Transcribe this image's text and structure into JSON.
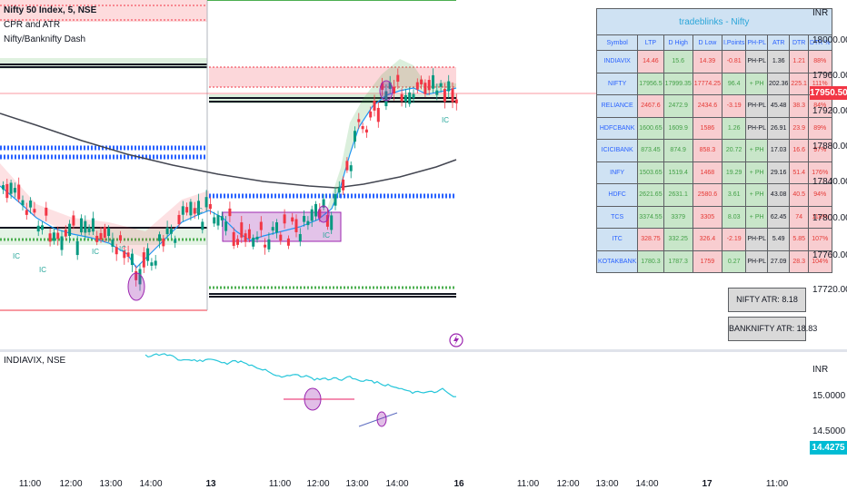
{
  "legend": {
    "symbol": "Nifty 50 Index, 5, NSE",
    "indicator1": "CPR and ATR",
    "indicator2": "Nifty/Banknifty Dash"
  },
  "vix_legend": "INDIAVIX, NSE",
  "price_scale": {
    "currency": "INR",
    "labels": [
      "18000.00",
      "17960.00",
      "17920.00",
      "17880.00",
      "17840.00",
      "17800.00",
      "17760.00",
      "17720.00"
    ],
    "last_price": "17950.50",
    "last_price_color": "#f23645"
  },
  "vix_scale": {
    "currency": "INR",
    "labels": [
      "15.0000",
      "14.5000"
    ],
    "last_value": "14.4275",
    "last_value_color": "#00bcd4"
  },
  "time_axis": {
    "labels": [
      "11:00",
      "12:00",
      "13:00",
      "14:00",
      "13",
      "11:00",
      "12:00",
      "13:00",
      "14:00",
      "16",
      "11:00",
      "12:00",
      "13:00",
      "14:00",
      "17",
      "11:00"
    ]
  },
  "dashboard": {
    "title": "tradeblinks - Nifty",
    "headers": [
      "Symbol",
      "LTP",
      "D High",
      "D Low",
      "I.Points",
      "PH-PL",
      "ATR",
      "DTR",
      "DTR %"
    ],
    "rows": [
      {
        "cells": [
          "INDIAVIX",
          "14.46",
          "15.6",
          "14.39",
          "-0.81",
          "PH-PL",
          "1.36",
          "1.21",
          "88%"
        ],
        "styles": [
          "sym",
          "r",
          "g",
          "r",
          "r",
          "gray",
          "gray",
          "r",
          "r"
        ]
      },
      {
        "cells": [
          "NIFTY",
          "17956.5",
          "17999.35",
          "17774.25",
          "96.4",
          "+ PH",
          "202.36",
          "225.1",
          "111%"
        ],
        "styles": [
          "sym",
          "g",
          "g",
          "r",
          "g",
          "g",
          "gray",
          "r",
          "r"
        ]
      },
      {
        "cells": [
          "RELIANCE",
          "2467.6",
          "2472.9",
          "2434.6",
          "-3.19",
          "PH-PL",
          "45.48",
          "38.3",
          "84%"
        ],
        "styles": [
          "sym",
          "r",
          "g",
          "r",
          "r",
          "gray",
          "gray",
          "r",
          "r"
        ]
      },
      {
        "cells": [
          "HDFCBANK",
          "1600.65",
          "1609.9",
          "1586",
          "1.26",
          "PH-PL",
          "26.91",
          "23.9",
          "89%"
        ],
        "styles": [
          "sym",
          "g",
          "g",
          "r",
          "g",
          "gray",
          "gray",
          "r",
          "r"
        ]
      },
      {
        "cells": [
          "ICICIBANK",
          "873.45",
          "874.9",
          "858.3",
          "20.72",
          "+ PH",
          "17.03",
          "16.6",
          "97%"
        ],
        "styles": [
          "sym",
          "g",
          "g",
          "r",
          "g",
          "g",
          "gray",
          "r",
          "r"
        ]
      },
      {
        "cells": [
          "INFY",
          "1503.65",
          "1519.4",
          "1468",
          "19.29",
          "+ PH",
          "29.16",
          "51.4",
          "176%"
        ],
        "styles": [
          "sym",
          "g",
          "g",
          "r",
          "g",
          "g",
          "gray",
          "r",
          "r"
        ]
      },
      {
        "cells": [
          "HDFC",
          "2621.65",
          "2631.1",
          "2580.6",
          "3.61",
          "+ PH",
          "43.08",
          "40.5",
          "94%"
        ],
        "styles": [
          "sym",
          "g",
          "g",
          "r",
          "g",
          "g",
          "gray",
          "r",
          "r"
        ]
      },
      {
        "cells": [
          "TCS",
          "3374.55",
          "3379",
          "3305",
          "8.03",
          "+ PH",
          "62.45",
          "74",
          "118%"
        ],
        "styles": [
          "sym",
          "g",
          "g",
          "r",
          "g",
          "g",
          "gray",
          "r",
          "r"
        ]
      },
      {
        "cells": [
          "ITC",
          "328.75",
          "332.25",
          "326.4",
          "-2.19",
          "PH-PL",
          "5.49",
          "5.85",
          "107%"
        ],
        "styles": [
          "sym",
          "r",
          "g",
          "r",
          "r",
          "gray",
          "gray",
          "r",
          "r"
        ]
      },
      {
        "cells": [
          "KOTAKBANK",
          "1780.3",
          "1787.3",
          "1759",
          "0.27",
          "PH-PL",
          "27.09",
          "28.3",
          "104%"
        ],
        "styles": [
          "sym",
          "g",
          "g",
          "r",
          "g",
          "gray",
          "gray",
          "r",
          "r"
        ]
      }
    ]
  },
  "atr_boxes": {
    "nifty": "NIFTY ATR: 8.18",
    "banknifty": "BANKNIFTY ATR: 18.83"
  },
  "chart_labels": {
    "ic": "IC"
  },
  "colors": {
    "bull": "#089981",
    "bear": "#f23645",
    "ema": "#2196f3",
    "long_ma": "#434651",
    "vix_line": "#26c6da",
    "cpr_blue": "#2962ff",
    "bubble": "#9c27b0"
  },
  "icons": {
    "alert": "lightning-bolt-icon"
  }
}
